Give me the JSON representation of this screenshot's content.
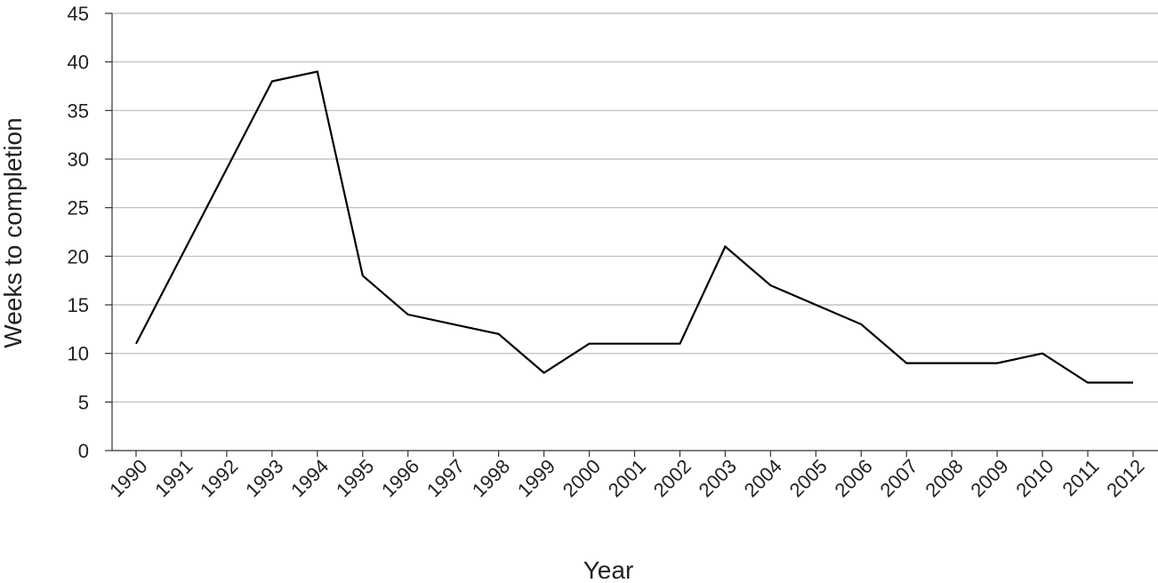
{
  "chart_data": {
    "type": "line",
    "title": "",
    "xlabel": "Year",
    "ylabel": "Weeks to completion",
    "categories": [
      "1990",
      "1991",
      "1992",
      "1993",
      "1994",
      "1995",
      "1996",
      "1997",
      "1998",
      "1999",
      "2000",
      "2001",
      "2002",
      "2003",
      "2004",
      "2005",
      "2006",
      "2007",
      "2008",
      "2009",
      "2010",
      "2011",
      "2012"
    ],
    "series": [
      {
        "values": [
          11,
          20,
          29,
          38,
          39,
          18,
          14,
          13,
          12,
          8,
          11,
          11,
          11,
          21,
          17,
          15,
          13,
          9,
          9,
          9,
          10,
          7,
          7
        ]
      }
    ],
    "ylim": [
      0,
      45
    ],
    "yticks": [
      0,
      5,
      10,
      15,
      20,
      25,
      30,
      35,
      40,
      45
    ],
    "grid": true,
    "legend": "none",
    "colors": {
      "line": "#000000",
      "grid": "#b9b9b9"
    }
  }
}
